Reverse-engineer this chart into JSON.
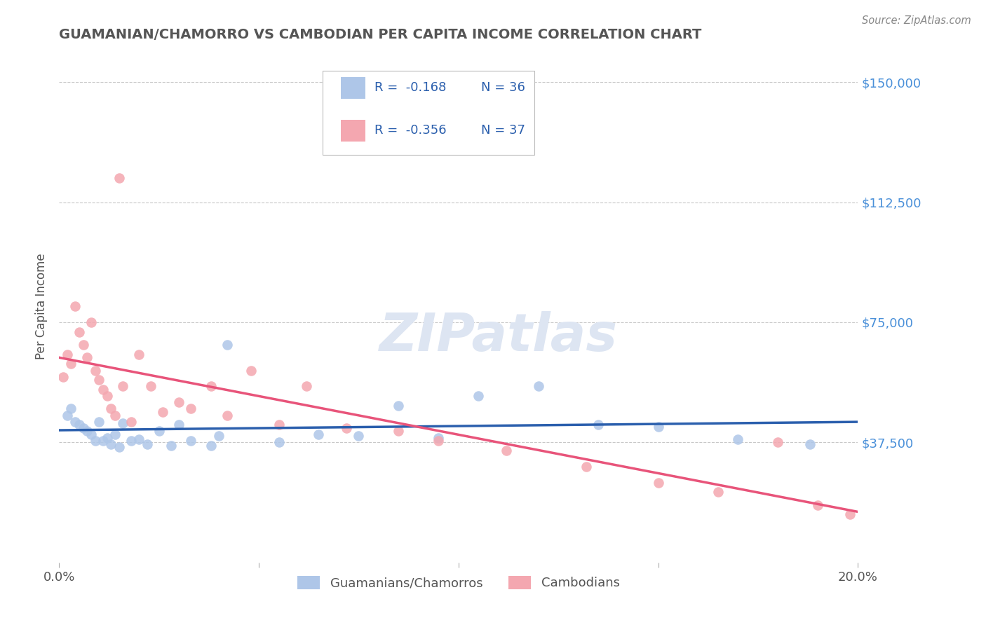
{
  "title": "GUAMANIAN/CHAMORRO VS CAMBODIAN PER CAPITA INCOME CORRELATION CHART",
  "source": "Source: ZipAtlas.com",
  "ylabel": "Per Capita Income",
  "xlim": [
    0.0,
    0.2
  ],
  "ylim": [
    0,
    160000
  ],
  "yticks": [
    0,
    37500,
    75000,
    112500,
    150000
  ],
  "ytick_labels": [
    "",
    "$37,500",
    "$75,000",
    "$112,500",
    "$150,000"
  ],
  "xticks": [
    0.0,
    0.05,
    0.1,
    0.15,
    0.2
  ],
  "xtick_labels": [
    "0.0%",
    "",
    "",
    "",
    "20.0%"
  ],
  "legend_r1": "R =  -0.168",
  "legend_n1": "N = 36",
  "legend_r2": "R =  -0.356",
  "legend_n2": "N = 37",
  "label_guam": "Guamanians/Chamorros",
  "label_camb": "Cambodians",
  "color_guam": "#aec6e8",
  "color_camb": "#f4a7b0",
  "color_guam_line": "#2b5fad",
  "color_camb_line": "#e8547a",
  "color_axis_right": "#4a90d9",
  "watermark": "ZIPatlas",
  "guam_x": [
    0.002,
    0.003,
    0.004,
    0.005,
    0.006,
    0.007,
    0.008,
    0.009,
    0.01,
    0.011,
    0.012,
    0.013,
    0.014,
    0.015,
    0.016,
    0.018,
    0.02,
    0.022,
    0.025,
    0.028,
    0.03,
    0.033,
    0.038,
    0.04,
    0.042,
    0.055,
    0.065,
    0.075,
    0.085,
    0.095,
    0.105,
    0.12,
    0.135,
    0.15,
    0.17,
    0.188
  ],
  "guam_y": [
    46000,
    48000,
    44000,
    43000,
    42000,
    41000,
    40000,
    38000,
    44000,
    38000,
    39000,
    37000,
    40000,
    36000,
    43500,
    38000,
    38500,
    37000,
    41000,
    36500,
    43000,
    38000,
    36500,
    39500,
    68000,
    37500,
    40000,
    39500,
    49000,
    39000,
    52000,
    55000,
    43000,
    42500,
    38500,
    37000
  ],
  "camb_x": [
    0.001,
    0.002,
    0.003,
    0.004,
    0.005,
    0.006,
    0.007,
    0.008,
    0.009,
    0.01,
    0.011,
    0.012,
    0.013,
    0.014,
    0.015,
    0.016,
    0.018,
    0.02,
    0.023,
    0.026,
    0.03,
    0.033,
    0.038,
    0.042,
    0.048,
    0.055,
    0.062,
    0.072,
    0.085,
    0.095,
    0.112,
    0.132,
    0.15,
    0.165,
    0.18,
    0.19,
    0.198
  ],
  "camb_y": [
    58000,
    65000,
    62000,
    80000,
    72000,
    68000,
    64000,
    75000,
    60000,
    57000,
    54000,
    52000,
    48000,
    46000,
    120000,
    55000,
    44000,
    65000,
    55000,
    47000,
    50000,
    48000,
    55000,
    46000,
    60000,
    43000,
    55000,
    42000,
    41000,
    38000,
    35000,
    30000,
    25000,
    22000,
    37500,
    18000,
    15000
  ],
  "background_color": "#ffffff",
  "grid_color": "#c8c8c8"
}
